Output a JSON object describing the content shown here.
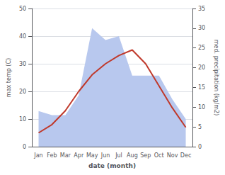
{
  "chart_data": {
    "type": "line",
    "categories": [
      "Jan",
      "Feb",
      "Mar",
      "Apr",
      "May",
      "Jun",
      "Jul",
      "Aug",
      "Sep",
      "Oct",
      "Nov",
      "Dec"
    ],
    "xlabel": "date (month)",
    "ylabel": "max temp (C)",
    "y2label": "med. precipitation (kg/m2)",
    "series": [
      {
        "type": "area",
        "axis": "y2",
        "color": "#b8c8ee",
        "values": [
          9,
          8,
          8,
          13,
          30,
          27,
          28,
          18,
          18,
          18,
          12,
          7
        ]
      },
      {
        "type": "line",
        "color": "#c0392b",
        "values": [
          5,
          8,
          13,
          20,
          26,
          30,
          33,
          35,
          30,
          22,
          14,
          7
        ]
      }
    ],
    "ylim": [
      0,
      50
    ],
    "yticks": [
      0,
      10,
      20,
      30,
      40,
      50
    ],
    "y2lim": [
      0,
      35
    ],
    "y2ticks": [
      0,
      5,
      10,
      15,
      20,
      25,
      30,
      35
    ],
    "grid": true
  }
}
